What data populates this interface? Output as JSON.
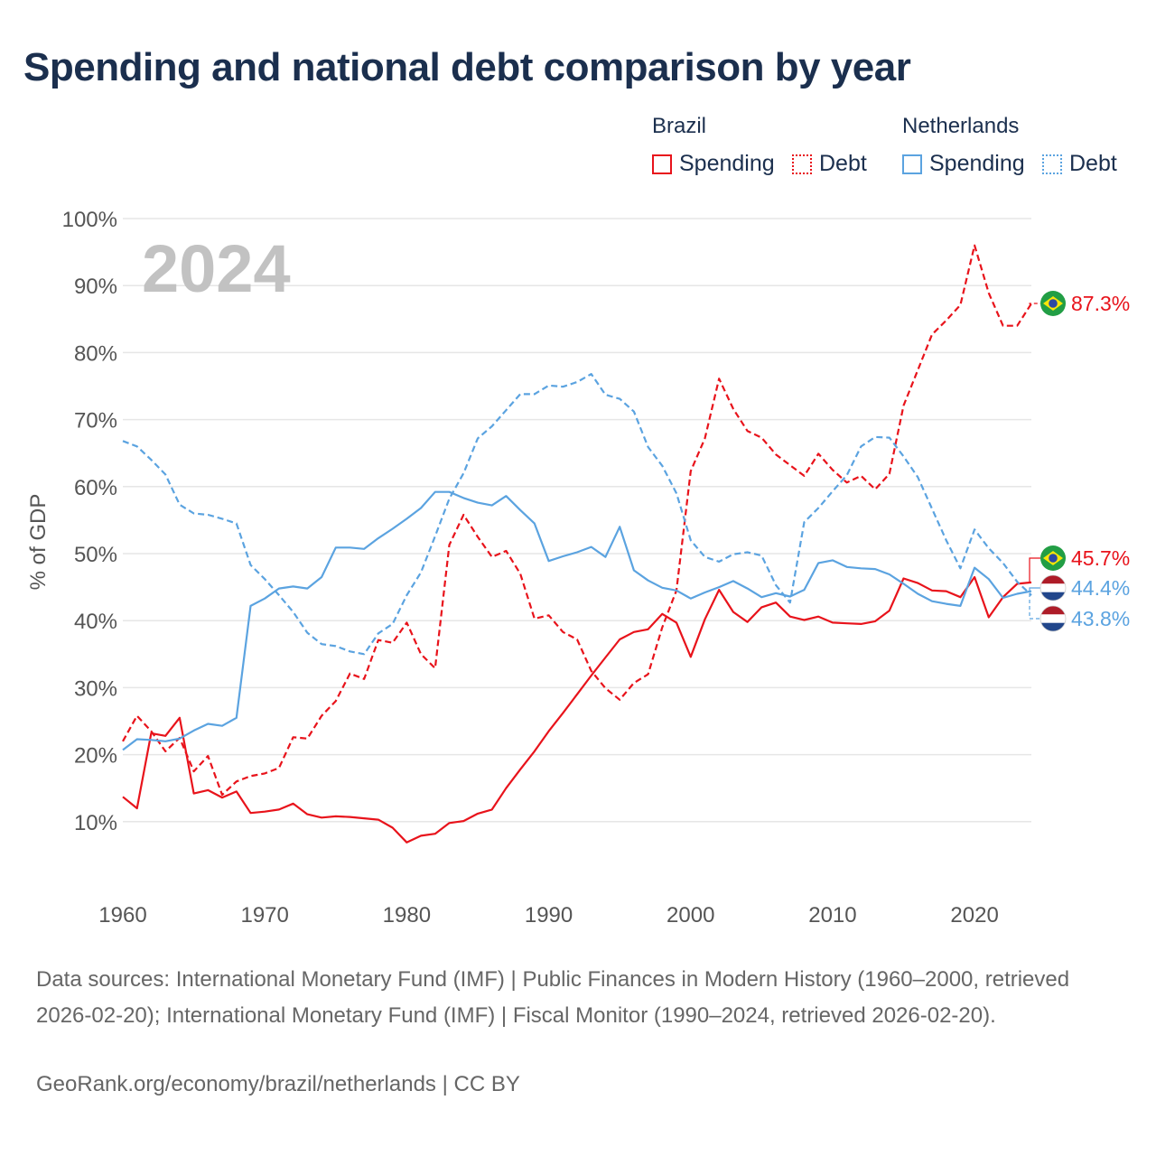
{
  "title": "Spending and national debt comparison by year",
  "legend": {
    "groups": [
      {
        "country": "Brazil",
        "color": "#e8131b",
        "items": [
          {
            "label": "Spending",
            "style": "solid"
          },
          {
            "label": "Debt",
            "style": "dotted"
          }
        ]
      },
      {
        "country": "Netherlands",
        "color": "#5ba3e0",
        "items": [
          {
            "label": "Spending",
            "style": "solid"
          },
          {
            "label": "Debt",
            "style": "dotted"
          }
        ]
      }
    ]
  },
  "chart_data": {
    "type": "line",
    "year_watermark": "2024",
    "ylabel": "% of GDP",
    "xlabel": "",
    "xlim": [
      1960,
      2024
    ],
    "ylim": [
      0,
      100
    ],
    "x_ticks": [
      1960,
      1970,
      1980,
      1990,
      2000,
      2010,
      2020
    ],
    "y_ticks": [
      10,
      20,
      30,
      40,
      50,
      60,
      70,
      80,
      90,
      100
    ],
    "y_tick_labels": [
      "10%",
      "20%",
      "30%",
      "40%",
      "50%",
      "60%",
      "70%",
      "80%",
      "90%",
      "100%"
    ],
    "series": [
      {
        "name": "Brazil Spending",
        "country": "Brazil",
        "metric": "Spending",
        "color": "#e8131b",
        "dashed": false,
        "end_label": "45.7%",
        "points": [
          [
            1960,
            13.7
          ],
          [
            1961,
            12.0
          ],
          [
            1962,
            23.2
          ],
          [
            1963,
            22.8
          ],
          [
            1964,
            25.5
          ],
          [
            1965,
            14.2
          ],
          [
            1966,
            14.7
          ],
          [
            1967,
            13.6
          ],
          [
            1968,
            14.5
          ],
          [
            1969,
            11.3
          ],
          [
            1970,
            11.5
          ],
          [
            1971,
            11.8
          ],
          [
            1972,
            12.7
          ],
          [
            1973,
            11.1
          ],
          [
            1974,
            10.6
          ],
          [
            1975,
            10.8
          ],
          [
            1976,
            10.7
          ],
          [
            1977,
            10.5
          ],
          [
            1978,
            10.3
          ],
          [
            1979,
            9.1
          ],
          [
            1980,
            6.9
          ],
          [
            1981,
            7.9
          ],
          [
            1982,
            8.2
          ],
          [
            1983,
            9.8
          ],
          [
            1984,
            10.1
          ],
          [
            1985,
            11.2
          ],
          [
            1986,
            11.8
          ],
          [
            1987,
            15.0
          ],
          [
            1988,
            17.8
          ],
          [
            1989,
            20.5
          ],
          [
            1990,
            23.5
          ],
          [
            1991,
            26.2
          ],
          [
            1992,
            29.0
          ],
          [
            1993,
            31.8
          ],
          [
            1994,
            34.5
          ],
          [
            1995,
            37.2
          ],
          [
            1996,
            38.3
          ],
          [
            1997,
            38.7
          ],
          [
            1998,
            41.0
          ],
          [
            1999,
            39.7
          ],
          [
            2000,
            34.6
          ],
          [
            2001,
            40.2
          ],
          [
            2002,
            44.6
          ],
          [
            2003,
            41.3
          ],
          [
            2004,
            39.8
          ],
          [
            2005,
            42.0
          ],
          [
            2006,
            42.7
          ],
          [
            2007,
            40.6
          ],
          [
            2008,
            40.1
          ],
          [
            2009,
            40.6
          ],
          [
            2010,
            39.7
          ],
          [
            2011,
            39.6
          ],
          [
            2012,
            39.5
          ],
          [
            2013,
            39.9
          ],
          [
            2014,
            41.5
          ],
          [
            2015,
            46.3
          ],
          [
            2016,
            45.6
          ],
          [
            2017,
            44.5
          ],
          [
            2018,
            44.4
          ],
          [
            2019,
            43.5
          ],
          [
            2020,
            46.5
          ],
          [
            2021,
            40.5
          ],
          [
            2022,
            43.5
          ],
          [
            2023,
            45.5
          ],
          [
            2024,
            45.7
          ]
        ]
      },
      {
        "name": "Brazil Debt",
        "country": "Brazil",
        "metric": "Debt",
        "color": "#e8131b",
        "dashed": true,
        "end_label": "87.3%",
        "points": [
          [
            1960,
            22.0
          ],
          [
            1961,
            25.8
          ],
          [
            1962,
            23.5
          ],
          [
            1963,
            20.5
          ],
          [
            1964,
            22.5
          ],
          [
            1965,
            17.5
          ],
          [
            1966,
            19.8
          ],
          [
            1967,
            14.0
          ],
          [
            1968,
            16.0
          ],
          [
            1969,
            16.8
          ],
          [
            1970,
            17.2
          ],
          [
            1971,
            18.0
          ],
          [
            1972,
            22.6
          ],
          [
            1973,
            22.4
          ],
          [
            1974,
            25.8
          ],
          [
            1975,
            28.0
          ],
          [
            1976,
            32.1
          ],
          [
            1977,
            31.3
          ],
          [
            1978,
            37.1
          ],
          [
            1979,
            36.7
          ],
          [
            1980,
            39.7
          ],
          [
            1981,
            35.0
          ],
          [
            1982,
            32.9
          ],
          [
            1983,
            51.3
          ],
          [
            1984,
            55.8
          ],
          [
            1985,
            52.5
          ],
          [
            1986,
            49.5
          ],
          [
            1987,
            50.4
          ],
          [
            1988,
            47.0
          ],
          [
            1989,
            40.3
          ],
          [
            1990,
            40.8
          ],
          [
            1991,
            38.3
          ],
          [
            1992,
            37.2
          ],
          [
            1993,
            32.5
          ],
          [
            1994,
            29.9
          ],
          [
            1995,
            28.2
          ],
          [
            1996,
            30.7
          ],
          [
            1997,
            32.0
          ],
          [
            1998,
            39.0
          ],
          [
            1999,
            44.5
          ],
          [
            2000,
            62.3
          ],
          [
            2001,
            67.2
          ],
          [
            2002,
            76.1
          ],
          [
            2003,
            71.6
          ],
          [
            2004,
            68.3
          ],
          [
            2005,
            67.3
          ],
          [
            2006,
            64.8
          ],
          [
            2007,
            63.2
          ],
          [
            2008,
            61.6
          ],
          [
            2009,
            64.9
          ],
          [
            2010,
            62.5
          ],
          [
            2011,
            60.6
          ],
          [
            2012,
            61.6
          ],
          [
            2013,
            59.6
          ],
          [
            2014,
            61.9
          ],
          [
            2015,
            72.1
          ],
          [
            2016,
            77.4
          ],
          [
            2017,
            82.7
          ],
          [
            2018,
            84.8
          ],
          [
            2019,
            87.1
          ],
          [
            2020,
            96.0
          ],
          [
            2021,
            88.9
          ],
          [
            2022,
            84.0
          ],
          [
            2023,
            84.0
          ],
          [
            2024,
            87.3
          ]
        ]
      },
      {
        "name": "Netherlands Spending",
        "country": "Netherlands",
        "metric": "Spending",
        "color": "#5ba3e0",
        "dashed": false,
        "end_label": "44.4%",
        "points": [
          [
            1960,
            20.7
          ],
          [
            1961,
            22.3
          ],
          [
            1962,
            22.2
          ],
          [
            1963,
            22.0
          ],
          [
            1964,
            22.4
          ],
          [
            1965,
            23.6
          ],
          [
            1966,
            24.6
          ],
          [
            1967,
            24.3
          ],
          [
            1968,
            25.5
          ],
          [
            1969,
            42.2
          ],
          [
            1970,
            43.3
          ],
          [
            1971,
            44.8
          ],
          [
            1972,
            45.1
          ],
          [
            1973,
            44.8
          ],
          [
            1974,
            46.5
          ],
          [
            1975,
            50.9
          ],
          [
            1976,
            50.9
          ],
          [
            1977,
            50.7
          ],
          [
            1978,
            52.3
          ],
          [
            1979,
            53.7
          ],
          [
            1980,
            55.2
          ],
          [
            1981,
            56.8
          ],
          [
            1982,
            59.2
          ],
          [
            1983,
            59.2
          ],
          [
            1984,
            58.3
          ],
          [
            1985,
            57.6
          ],
          [
            1986,
            57.2
          ],
          [
            1987,
            58.6
          ],
          [
            1988,
            56.5
          ],
          [
            1989,
            54.5
          ],
          [
            1990,
            48.9
          ],
          [
            1991,
            49.6
          ],
          [
            1992,
            50.2
          ],
          [
            1993,
            51.0
          ],
          [
            1994,
            49.5
          ],
          [
            1995,
            54.0
          ],
          [
            1996,
            47.5
          ],
          [
            1997,
            46.0
          ],
          [
            1998,
            44.9
          ],
          [
            1999,
            44.5
          ],
          [
            2000,
            43.3
          ],
          [
            2001,
            44.2
          ],
          [
            2002,
            45.0
          ],
          [
            2003,
            45.9
          ],
          [
            2004,
            44.8
          ],
          [
            2005,
            43.5
          ],
          [
            2006,
            44.1
          ],
          [
            2007,
            43.6
          ],
          [
            2008,
            44.6
          ],
          [
            2009,
            48.6
          ],
          [
            2010,
            49.0
          ],
          [
            2011,
            48.0
          ],
          [
            2012,
            47.8
          ],
          [
            2013,
            47.7
          ],
          [
            2014,
            46.9
          ],
          [
            2015,
            45.5
          ],
          [
            2016,
            44.0
          ],
          [
            2017,
            42.9
          ],
          [
            2018,
            42.5
          ],
          [
            2019,
            42.2
          ],
          [
            2020,
            47.9
          ],
          [
            2021,
            46.2
          ],
          [
            2022,
            43.4
          ],
          [
            2023,
            44.0
          ],
          [
            2024,
            44.4
          ]
        ]
      },
      {
        "name": "Netherlands Debt",
        "country": "Netherlands",
        "metric": "Debt",
        "color": "#5ba3e0",
        "dashed": true,
        "end_label": "43.8%",
        "points": [
          [
            1960,
            66.8
          ],
          [
            1961,
            66.0
          ],
          [
            1962,
            64.0
          ],
          [
            1963,
            61.8
          ],
          [
            1964,
            57.3
          ],
          [
            1965,
            56.0
          ],
          [
            1966,
            55.8
          ],
          [
            1967,
            55.2
          ],
          [
            1968,
            54.5
          ],
          [
            1969,
            48.3
          ],
          [
            1970,
            46.2
          ],
          [
            1971,
            43.8
          ],
          [
            1972,
            41.3
          ],
          [
            1973,
            38.2
          ],
          [
            1974,
            36.5
          ],
          [
            1975,
            36.2
          ],
          [
            1976,
            35.4
          ],
          [
            1977,
            35.0
          ],
          [
            1978,
            38.1
          ],
          [
            1979,
            39.5
          ],
          [
            1980,
            43.8
          ],
          [
            1981,
            47.2
          ],
          [
            1982,
            52.6
          ],
          [
            1983,
            58.2
          ],
          [
            1984,
            62.0
          ],
          [
            1985,
            67.2
          ],
          [
            1986,
            69.0
          ],
          [
            1987,
            71.4
          ],
          [
            1988,
            73.8
          ],
          [
            1989,
            73.8
          ],
          [
            1990,
            75.1
          ],
          [
            1991,
            74.9
          ],
          [
            1992,
            75.6
          ],
          [
            1993,
            76.8
          ],
          [
            1994,
            73.7
          ],
          [
            1995,
            73.1
          ],
          [
            1996,
            71.2
          ],
          [
            1997,
            65.9
          ],
          [
            1998,
            63.1
          ],
          [
            1999,
            59.0
          ],
          [
            2000,
            52.0
          ],
          [
            2001,
            49.5
          ],
          [
            2002,
            48.8
          ],
          [
            2003,
            49.9
          ],
          [
            2004,
            50.2
          ],
          [
            2005,
            49.7
          ],
          [
            2006,
            45.3
          ],
          [
            2007,
            42.7
          ],
          [
            2008,
            54.7
          ],
          [
            2009,
            56.8
          ],
          [
            2010,
            59.3
          ],
          [
            2011,
            61.7
          ],
          [
            2012,
            66.0
          ],
          [
            2013,
            67.4
          ],
          [
            2014,
            67.3
          ],
          [
            2015,
            64.5
          ],
          [
            2016,
            61.4
          ],
          [
            2017,
            56.7
          ],
          [
            2018,
            52.0
          ],
          [
            2019,
            47.8
          ],
          [
            2020,
            53.6
          ],
          [
            2021,
            50.8
          ],
          [
            2022,
            48.6
          ],
          [
            2023,
            45.8
          ],
          [
            2024,
            43.8
          ]
        ]
      }
    ]
  },
  "footer": {
    "sources": "Data sources: International Monetary Fund (IMF) | Public Finances in Modern History (1960–2000, retrieved 2026-02-20); International Monetary Fund (IMF) | Fiscal Monitor (1990–2024, retrieved 2026-02-20).",
    "credit": "GeoRank.org/economy/brazil/netherlands | CC BY"
  }
}
